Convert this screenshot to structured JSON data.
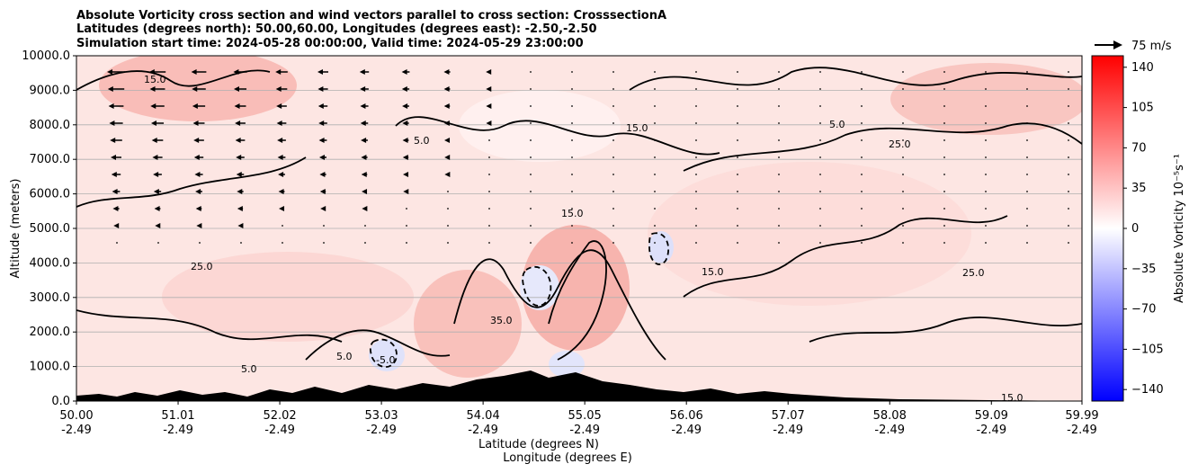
{
  "chart_data": {
    "type": "heatmap",
    "title_lines": [
      "Absolute Vorticity cross section and wind vectors parallel to cross section: CrosssectionA",
      "Latitudes (degrees north): 50.00,60.00, Longitudes (degrees east): -2.50,-2.50",
      "Simulation start time: 2024-05-28 00:00:00, Valid time: 2024-05-29 23:00:00"
    ],
    "xlabel_lat": "Latitude (degrees N)",
    "xlabel_lon": "Longitude (degrees E)",
    "ylabel": "Altitude (meters)",
    "x_ticks": [
      {
        "lat": "50.00",
        "lon": "-2.49",
        "v": 50.0
      },
      {
        "lat": "51.01",
        "lon": "-2.49",
        "v": 51.01
      },
      {
        "lat": "52.02",
        "lon": "-2.49",
        "v": 52.02
      },
      {
        "lat": "53.03",
        "lon": "-2.49",
        "v": 53.03
      },
      {
        "lat": "54.04",
        "lon": "-2.49",
        "v": 54.04
      },
      {
        "lat": "55.05",
        "lon": "-2.49",
        "v": 55.05
      },
      {
        "lat": "56.06",
        "lon": "-2.49",
        "v": 56.06
      },
      {
        "lat": "57.07",
        "lon": "-2.49",
        "v": 57.07
      },
      {
        "lat": "58.08",
        "lon": "-2.49",
        "v": 58.08
      },
      {
        "lat": "59.09",
        "lon": "-2.49",
        "v": 59.09
      },
      {
        "lat": "59.99",
        "lon": "-2.49",
        "v": 59.99
      }
    ],
    "xlim": [
      50.0,
      59.99
    ],
    "y_ticks": [
      "0.0",
      "1000.0",
      "2000.0",
      "3000.0",
      "4000.0",
      "5000.0",
      "6000.0",
      "7000.0",
      "8000.0",
      "9000.0",
      "10000.0"
    ],
    "ylim": [
      0,
      10000
    ],
    "grid": "horizontal",
    "colorbar": {
      "label": "Absolute Vorticity 10⁻⁵s⁻¹",
      "ticks": [
        "140",
        "105",
        "70",
        "35",
        "0",
        "−35",
        "−70",
        "−105",
        "−140"
      ],
      "range": [
        -150,
        150
      ],
      "colors": {
        "high": "#ff0000",
        "mid": "#ffffff",
        "low": "#0000ff"
      }
    },
    "quiver_key": {
      "label": "75 m/s",
      "value": 75
    },
    "contour_levels": [
      "-5.0",
      "5.0",
      "15.0",
      "25.0",
      "35.0"
    ],
    "terrain_color": "#000000"
  }
}
